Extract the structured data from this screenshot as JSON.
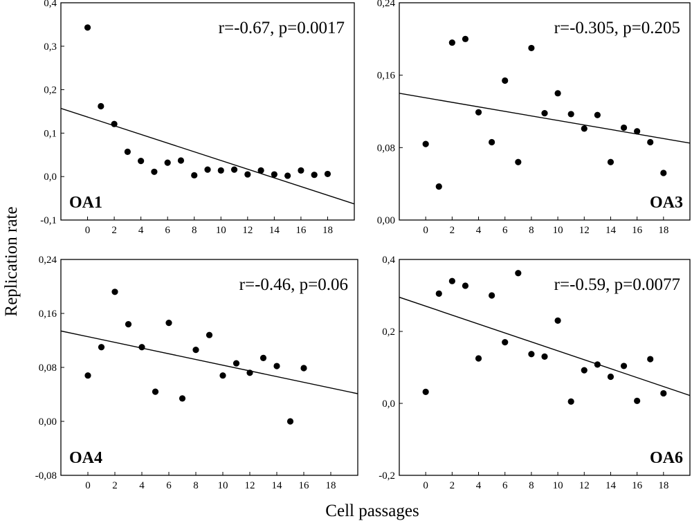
{
  "figure": {
    "ylabel": "Replication  rate",
    "xlabel": "Cell  passages"
  },
  "chart_data": [
    {
      "type": "scatter",
      "panel_label": "OA1",
      "stat": "r=-0.67, p=0.0017",
      "label_position": "bottom-left",
      "xlim": [
        -2,
        20
      ],
      "ylim": [
        -0.1,
        0.4
      ],
      "xticks": [
        0,
        2,
        4,
        6,
        8,
        10,
        12,
        14,
        16,
        18
      ],
      "yticks": [
        -0.1,
        0.0,
        0.1,
        0.2,
        0.3,
        0.4
      ],
      "ytick_labels": [
        "-0,1",
        "0,0",
        "0,1",
        "0,2",
        "0,3",
        "0,4"
      ],
      "x": [
        0,
        1,
        2,
        3,
        4,
        5,
        6,
        7,
        8,
        9,
        10,
        11,
        12,
        13,
        14,
        15,
        16,
        17,
        18
      ],
      "y": [
        0.343,
        0.162,
        0.121,
        0.057,
        0.036,
        0.011,
        0.032,
        0.037,
        0.003,
        0.016,
        0.014,
        0.016,
        0.005,
        0.014,
        0.005,
        0.002,
        0.014,
        0.004,
        0.006
      ],
      "fit": {
        "x": [
          -2,
          20
        ],
        "y": [
          0.157,
          -0.063
        ]
      }
    },
    {
      "type": "scatter",
      "panel_label": "OA3",
      "stat": "r=-0.305, p=0.205",
      "label_position": "bottom-right",
      "xlim": [
        -2,
        20
      ],
      "ylim": [
        0,
        0.24
      ],
      "xticks": [
        0,
        2,
        4,
        6,
        8,
        10,
        12,
        14,
        16,
        18
      ],
      "yticks": [
        0.0,
        0.08,
        0.16,
        0.24
      ],
      "ytick_labels": [
        "0,00",
        "0,08",
        "0,16",
        "0,24"
      ],
      "x": [
        0,
        1,
        2,
        3,
        4,
        5,
        6,
        7,
        8,
        9,
        10,
        11,
        12,
        13,
        14,
        15,
        16,
        17,
        18
      ],
      "y": [
        0.084,
        0.037,
        0.196,
        0.2,
        0.119,
        0.086,
        0.154,
        0.064,
        0.19,
        0.118,
        0.14,
        0.117,
        0.101,
        0.116,
        0.064,
        0.102,
        0.098,
        0.086,
        0.052
      ],
      "fit": {
        "x": [
          -2,
          20
        ],
        "y": [
          0.14,
          0.085
        ]
      }
    },
    {
      "type": "scatter",
      "panel_label": "OA4",
      "stat": "r=-0.46, p=0.06",
      "label_position": "bottom-left",
      "xlim": [
        -2,
        20
      ],
      "ylim": [
        -0.08,
        0.24
      ],
      "xticks": [
        0,
        2,
        4,
        6,
        8,
        10,
        12,
        14,
        16,
        18
      ],
      "yticks": [
        -0.08,
        0.0,
        0.08,
        0.16,
        0.24
      ],
      "ytick_labels": [
        "-0,08",
        "0,00",
        "0,08",
        "0,16",
        "0,24"
      ],
      "x": [
        0,
        1,
        2,
        3,
        4,
        5,
        6,
        7,
        8,
        9,
        10,
        11,
        12,
        13,
        14,
        15,
        16
      ],
      "y": [
        0.068,
        0.11,
        0.192,
        0.144,
        0.11,
        0.044,
        0.146,
        0.034,
        0.106,
        0.128,
        0.068,
        0.086,
        0.072,
        0.094,
        0.082,
        0.0,
        0.079
      ],
      "fit": {
        "x": [
          -2,
          20
        ],
        "y": [
          0.134,
          0.041
        ]
      }
    },
    {
      "type": "scatter",
      "panel_label": "OA6",
      "stat": "r=-0.59, p=0.0077",
      "label_position": "bottom-right",
      "xlim": [
        -2,
        20
      ],
      "ylim": [
        -0.2,
        0.4
      ],
      "xticks": [
        0,
        2,
        4,
        6,
        8,
        10,
        12,
        14,
        16,
        18
      ],
      "yticks": [
        -0.2,
        0.0,
        0.2,
        0.4
      ],
      "ytick_labels": [
        "-0,2",
        "0,0",
        "0,2",
        "0,4"
      ],
      "x": [
        0,
        1,
        2,
        3,
        4,
        5,
        6,
        7,
        8,
        9,
        10,
        11,
        12,
        13,
        14,
        15,
        16,
        17,
        18
      ],
      "y": [
        0.032,
        0.305,
        0.34,
        0.327,
        0.125,
        0.3,
        0.17,
        0.362,
        0.137,
        0.13,
        0.23,
        0.005,
        0.092,
        0.108,
        0.074,
        0.104,
        0.007,
        0.123,
        0.028
      ],
      "fit": {
        "x": [
          -2,
          20
        ],
        "y": [
          0.295,
          0.022
        ]
      }
    }
  ]
}
